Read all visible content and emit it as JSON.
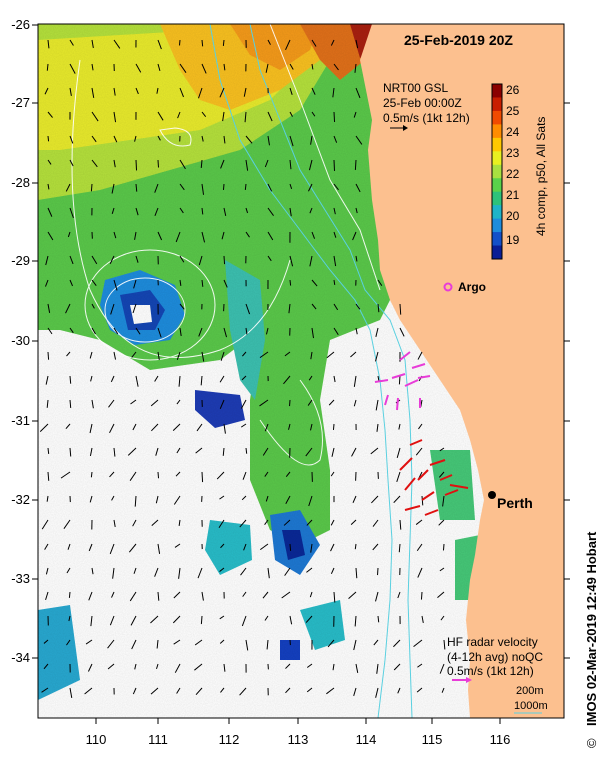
{
  "title": "25-Feb-2019 20Z",
  "altimetry": {
    "line1": "NRT00 GSL",
    "line2": "25-Feb 00:00Z",
    "line3": "0.5m/s (1kt 12h)"
  },
  "colorbar": {
    "label": "4h comp, p50, All Sats",
    "ticks": [
      "26",
      "25",
      "24",
      "23",
      "22",
      "21",
      "20",
      "19"
    ],
    "colors": [
      "#8b0000",
      "#c81e00",
      "#f04a00",
      "#ff8c00",
      "#ffc800",
      "#e8f020",
      "#a8e040",
      "#5ad24a",
      "#2ec27a",
      "#20b4c8",
      "#1e8cdc",
      "#1450c8",
      "#0a1e96"
    ]
  },
  "markers": {
    "argo_label": "Argo",
    "city_label": "Perth"
  },
  "hf_radar": {
    "line1": "HF radar velocity",
    "line2": "(4-12h avg) noQC",
    "line3": "0.5m/s (1kt 12h)"
  },
  "bathymetry": {
    "contour_200": "200m",
    "contour_1000": "1000m"
  },
  "axes": {
    "x_ticks": [
      "110",
      "111",
      "112",
      "113",
      "114",
      "115",
      "116"
    ],
    "y_ticks": [
      "-26",
      "-27",
      "-28",
      "-29",
      "-30",
      "-31",
      "-32",
      "-33",
      "-34"
    ]
  },
  "credit": "IMOS 02-Mar-2019 12:49 Hobart",
  "copyright_symbol": "©",
  "colors": {
    "land": "#fcc08f",
    "shelf_contour": "#5ad0e0",
    "hf_north": "#e83cd8",
    "hf_south": "#e01010",
    "ssh_contour": "#ffffff",
    "text": "#000000"
  }
}
